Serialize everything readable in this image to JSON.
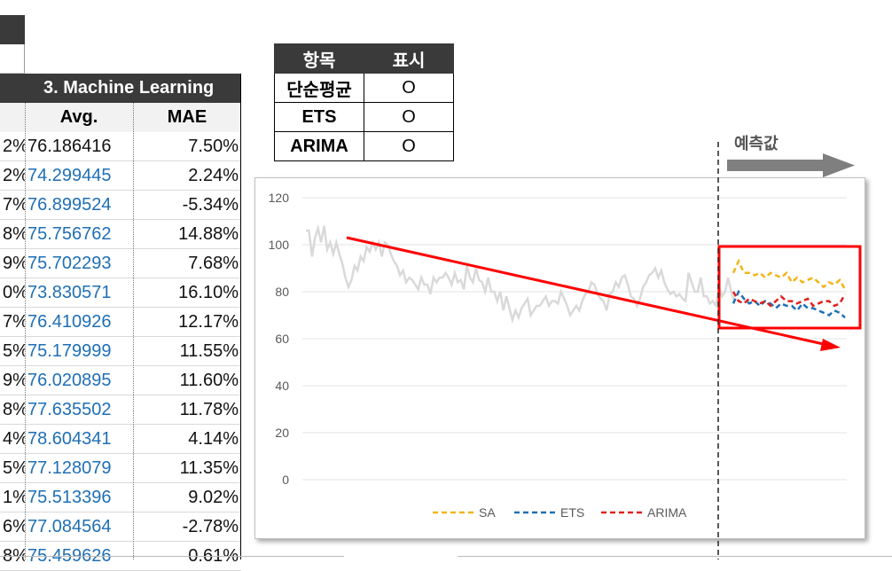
{
  "table": {
    "section_header": "3. Machine Learning",
    "col_avg": "Avg.",
    "col_mae": "MAE",
    "rows": [
      {
        "prev": "2%",
        "avg": "76.186416",
        "mae": "7.50%",
        "avg_color": "black"
      },
      {
        "prev": "2%",
        "avg": "74.299445",
        "mae": "2.24%",
        "avg_color": "blue"
      },
      {
        "prev": "7%",
        "avg": "76.899524",
        "mae": "-5.34%",
        "avg_color": "blue"
      },
      {
        "prev": "8%",
        "avg": "75.756762",
        "mae": "14.88%",
        "avg_color": "blue"
      },
      {
        "prev": "9%",
        "avg": "75.702293",
        "mae": "7.68%",
        "avg_color": "blue"
      },
      {
        "prev": "0%",
        "avg": "73.830571",
        "mae": "16.10%",
        "avg_color": "blue"
      },
      {
        "prev": "7%",
        "avg": "76.410926",
        "mae": "12.17%",
        "avg_color": "blue"
      },
      {
        "prev": "5%",
        "avg": "75.179999",
        "mae": "11.55%",
        "avg_color": "blue"
      },
      {
        "prev": "9%",
        "avg": "76.020895",
        "mae": "11.60%",
        "avg_color": "blue"
      },
      {
        "prev": "8%",
        "avg": "77.635502",
        "mae": "11.78%",
        "avg_color": "blue"
      },
      {
        "prev": "4%",
        "avg": "78.604341",
        "mae": "4.14%",
        "avg_color": "blue"
      },
      {
        "prev": "5%",
        "avg": "77.128079",
        "mae": "11.35%",
        "avg_color": "blue"
      },
      {
        "prev": "1%",
        "avg": "75.513396",
        "mae": "9.02%",
        "avg_color": "blue"
      },
      {
        "prev": "6%",
        "avg": "77.084564",
        "mae": "-2.78%",
        "avg_color": "blue"
      },
      {
        "prev": "8%",
        "avg": "75.459626",
        "mae": "0.61%",
        "avg_color": "blue"
      }
    ]
  },
  "legend_table": {
    "col_item": "항목",
    "col_show": "표시",
    "rows": [
      {
        "label": "단순평균",
        "mark": "O"
      },
      {
        "label": "ETS",
        "mark": "O"
      },
      {
        "label": "ARIMA",
        "mark": "O"
      }
    ]
  },
  "forecast_label": "예측값",
  "colors": {
    "header_bg": "#3a3a3a",
    "sa": "#f2b519",
    "ets": "#1f6fb5",
    "arima": "#e0201e",
    "actual": "#d9d9d9",
    "trend": "#ff0000"
  },
  "chart_data": {
    "type": "line",
    "ylim": [
      0,
      120
    ],
    "yticks": [
      0,
      20,
      40,
      60,
      80,
      100,
      120
    ],
    "grid": true,
    "legend_position": "bottom",
    "actual": [
      106,
      106,
      95,
      103,
      107,
      101,
      108,
      98,
      101,
      96,
      101,
      96,
      92,
      86,
      82,
      85,
      91,
      89,
      95,
      93,
      99,
      97,
      101,
      98,
      101,
      95,
      101,
      100,
      96,
      93,
      91,
      87,
      89,
      84,
      86,
      85,
      83,
      81,
      86,
      83,
      83,
      79,
      86,
      84,
      86,
      86,
      88,
      86,
      83,
      88,
      84,
      85,
      81,
      91,
      86,
      84,
      90,
      85,
      84,
      80,
      86,
      80,
      80,
      76,
      80,
      72,
      78,
      73,
      68,
      72,
      69,
      73,
      75,
      77,
      70,
      72,
      74,
      74,
      76,
      78,
      74,
      76,
      76,
      75,
      80,
      77,
      74,
      70,
      72,
      74,
      72,
      76,
      79,
      80,
      84,
      83,
      79,
      77,
      76,
      72,
      79,
      80,
      84,
      82,
      86,
      87,
      83,
      78,
      77,
      74,
      77,
      82,
      84,
      87,
      88,
      90,
      86,
      89,
      84,
      81,
      79,
      80,
      78,
      79,
      77,
      76,
      88,
      84,
      80,
      80,
      86,
      78,
      78,
      75,
      76,
      74,
      82,
      78,
      80,
      86,
      80,
      76
    ],
    "forecast_start_index": 0,
    "series": [
      {
        "name": "SA",
        "values": [
          88,
          93,
          88,
          88,
          87,
          88,
          86,
          88,
          87,
          86,
          88,
          84,
          86,
          84,
          85,
          86,
          84,
          82,
          84,
          83,
          85,
          81
        ]
      },
      {
        "name": "ETS",
        "values": [
          75,
          80,
          77,
          75,
          76,
          74,
          76,
          75,
          73,
          75,
          74,
          74,
          72,
          75,
          73,
          73,
          72,
          71,
          70,
          72,
          71,
          69
        ]
      },
      {
        "name": "ARIMA",
        "values": [
          80,
          76,
          75,
          77,
          76,
          75,
          76,
          74,
          76,
          78,
          76,
          76,
          75,
          76,
          77,
          74,
          75,
          76,
          76,
          74,
          75,
          79
        ]
      }
    ]
  }
}
